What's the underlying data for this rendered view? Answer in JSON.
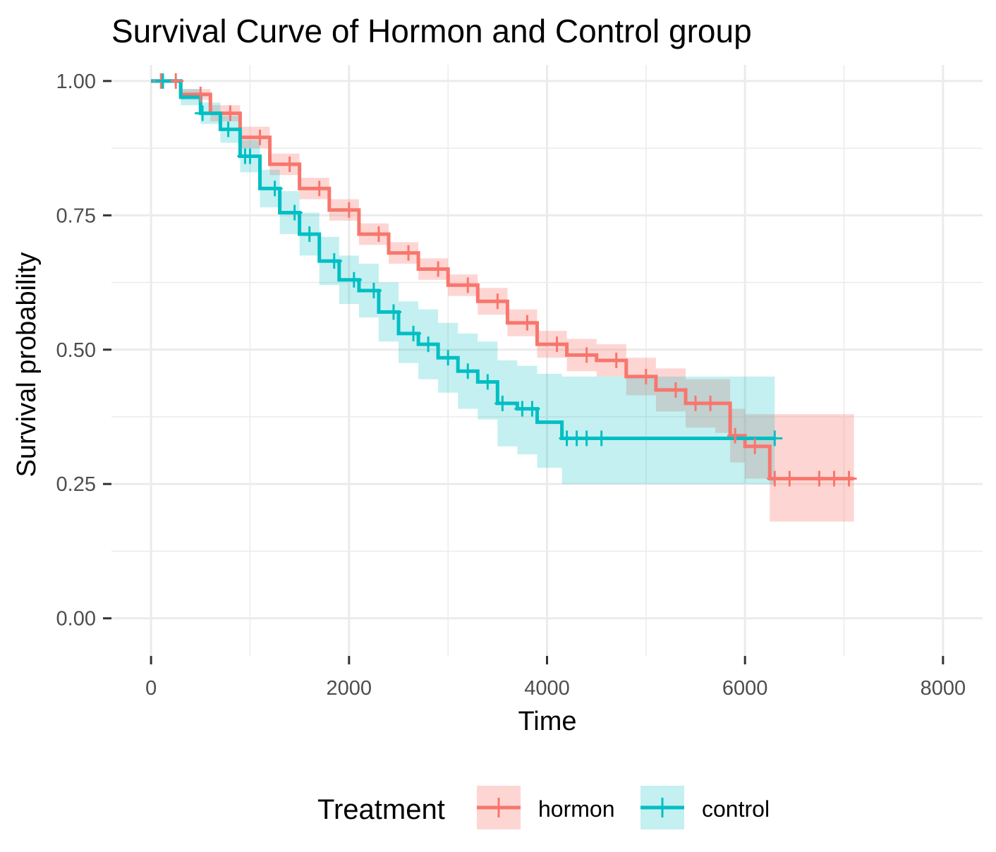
{
  "chart_data": {
    "type": "line",
    "title": "Survival Curve of Hormon and Control group",
    "xlabel": "Time",
    "ylabel": "Survival probability",
    "xlim": [
      -400,
      8400
    ],
    "ylim": [
      -0.07,
      1.03
    ],
    "x_ticks": [
      0,
      2000,
      4000,
      6000,
      8000
    ],
    "x_tick_labels": [
      "0",
      "2000",
      "4000",
      "6000",
      "8000"
    ],
    "y_ticks": [
      0,
      0.25,
      0.5,
      0.75,
      1.0
    ],
    "y_tick_labels": [
      "0.00",
      "0.25",
      "0.50",
      "0.75",
      "1.00"
    ],
    "grid": true,
    "legend": {
      "title": "Treatment",
      "position": "bottom",
      "entries": [
        "hormon",
        "control"
      ]
    },
    "series": [
      {
        "name": "hormon",
        "color": "#F8766D",
        "x": [
          0,
          300,
          600,
          900,
          1200,
          1500,
          1800,
          2100,
          2400,
          2700,
          3000,
          3300,
          3600,
          3900,
          4200,
          4500,
          4800,
          5100,
          5400,
          5700,
          5850,
          6000,
          6250,
          7100
        ],
        "y": [
          1.0,
          0.975,
          0.94,
          0.895,
          0.845,
          0.8,
          0.76,
          0.715,
          0.68,
          0.65,
          0.62,
          0.59,
          0.55,
          0.51,
          0.49,
          0.48,
          0.45,
          0.425,
          0.4,
          0.4,
          0.34,
          0.32,
          0.26,
          0.26
        ],
        "lower": [
          1.0,
          0.965,
          0.925,
          0.875,
          0.825,
          0.78,
          0.74,
          0.695,
          0.66,
          0.63,
          0.6,
          0.565,
          0.525,
          0.485,
          0.46,
          0.45,
          0.415,
          0.385,
          0.355,
          0.345,
          0.29,
          0.26,
          0.18,
          0.18
        ],
        "upper": [
          1.0,
          0.985,
          0.955,
          0.915,
          0.865,
          0.82,
          0.78,
          0.735,
          0.7,
          0.67,
          0.64,
          0.615,
          0.575,
          0.535,
          0.52,
          0.51,
          0.485,
          0.465,
          0.445,
          0.445,
          0.39,
          0.38,
          0.38,
          0.38
        ],
        "censored_x": [
          100,
          250,
          500,
          800,
          1100,
          1400,
          1700,
          2000,
          2300,
          2600,
          2900,
          3200,
          3500,
          3800,
          4100,
          4400,
          4700,
          5000,
          5300,
          5500,
          5650,
          5900,
          6100,
          6300,
          6450,
          6750,
          6900,
          7050
        ]
      },
      {
        "name": "control",
        "color": "#00BFC4",
        "x": [
          0,
          300,
          500,
          700,
          900,
          1100,
          1300,
          1500,
          1700,
          1900,
          2100,
          2300,
          2500,
          2700,
          2900,
          3100,
          3300,
          3500,
          3700,
          3900,
          4150,
          6300
        ],
        "y": [
          1.0,
          0.97,
          0.94,
          0.91,
          0.86,
          0.8,
          0.755,
          0.715,
          0.665,
          0.63,
          0.61,
          0.57,
          0.53,
          0.51,
          0.485,
          0.46,
          0.44,
          0.4,
          0.39,
          0.365,
          0.335,
          0.335
        ],
        "lower": [
          1.0,
          0.955,
          0.92,
          0.885,
          0.83,
          0.765,
          0.715,
          0.675,
          0.62,
          0.585,
          0.56,
          0.515,
          0.475,
          0.445,
          0.42,
          0.39,
          0.37,
          0.32,
          0.305,
          0.28,
          0.25,
          0.25
        ],
        "upper": [
          1.0,
          0.985,
          0.96,
          0.935,
          0.89,
          0.835,
          0.795,
          0.755,
          0.71,
          0.675,
          0.66,
          0.625,
          0.59,
          0.575,
          0.55,
          0.53,
          0.515,
          0.48,
          0.47,
          0.455,
          0.45,
          0.45
        ],
        "censored_x": [
          120,
          520,
          780,
          950,
          1000,
          1250,
          1450,
          1600,
          1850,
          2050,
          2250,
          2450,
          2650,
          2800,
          3000,
          3200,
          3400,
          3550,
          3750,
          3850,
          4200,
          4300,
          4400,
          4550,
          6300
        ]
      }
    ]
  }
}
